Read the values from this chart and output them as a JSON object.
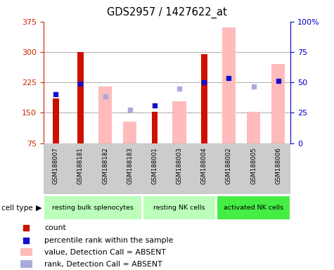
{
  "title": "GDS2957 / 1427622_at",
  "samples": [
    "GSM188007",
    "GSM188181",
    "GSM188182",
    "GSM188183",
    "GSM188001",
    "GSM188003",
    "GSM188004",
    "GSM188002",
    "GSM188005",
    "GSM188006"
  ],
  "cell_types": [
    {
      "label": "resting bulk splenocytes",
      "start": 0,
      "end": 4,
      "color": "#bbffbb"
    },
    {
      "label": "resting NK cells",
      "start": 4,
      "end": 7,
      "color": "#bbffbb"
    },
    {
      "label": "activated NK cells",
      "start": 7,
      "end": 10,
      "color": "#44ee44"
    }
  ],
  "red_bars": [
    185,
    300,
    null,
    null,
    152,
    null,
    295,
    null,
    null,
    null
  ],
  "pink_bars": [
    null,
    null,
    215,
    128,
    null,
    178,
    null,
    360,
    152,
    270
  ],
  "blue_dots": [
    195,
    222,
    null,
    null,
    168,
    null,
    226,
    235,
    null,
    228
  ],
  "lavender_dots": [
    null,
    null,
    190,
    158,
    null,
    210,
    null,
    null,
    215,
    null
  ],
  "ylim": [
    75,
    375
  ],
  "y_ticks_left": [
    75,
    150,
    225,
    300,
    375
  ],
  "y_ticks_right_vals": [
    0,
    25,
    50,
    75,
    100
  ],
  "y_ticks_right_labels": [
    "0",
    "25",
    "50",
    "75",
    "100%"
  ],
  "left_axis_color": "#cc2200",
  "right_axis_color": "#0000cc",
  "red_color": "#cc1100",
  "pink_color": "#ffbbbb",
  "blue_color": "#1111cc",
  "lavender_color": "#aaaadd",
  "grid_color": "black",
  "legend_items": [
    {
      "color": "#cc1100",
      "label": "count",
      "type": "square"
    },
    {
      "color": "#1111cc",
      "label": "percentile rank within the sample",
      "type": "square"
    },
    {
      "color": "#ffbbbb",
      "label": "value, Detection Call = ABSENT",
      "type": "rect"
    },
    {
      "color": "#aaaadd",
      "label": "rank, Detection Call = ABSENT",
      "type": "rect"
    }
  ]
}
